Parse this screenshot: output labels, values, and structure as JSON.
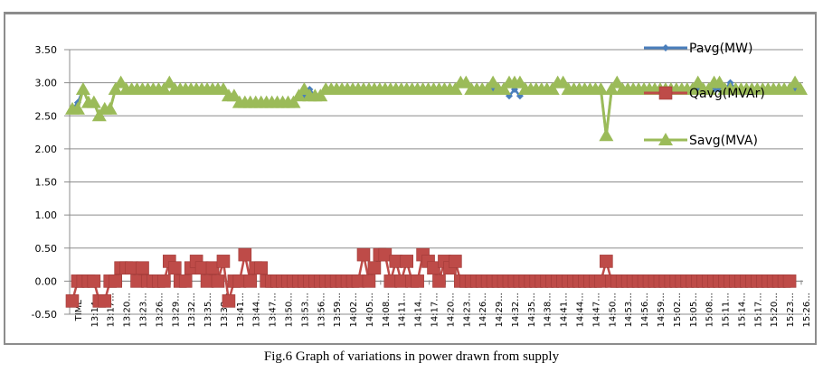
{
  "caption": "Fig.6 Graph of variations in power drawn from supply",
  "chart_data": {
    "type": "line",
    "title": "",
    "xlabel": "",
    "ylabel": "",
    "ylim": [
      -0.5,
      3.5
    ],
    "yticks": [
      "-0.50",
      "0.00",
      "0.50",
      "1.00",
      "1.50",
      "2.00",
      "2.50",
      "3.00",
      "3.50"
    ],
    "ytick_values": [
      -0.5,
      0,
      0.5,
      1.0,
      1.5,
      2.0,
      2.5,
      3.0,
      3.5
    ],
    "grid": true,
    "legend_position": "right",
    "xtick_labels": [
      "TIME",
      "13:14...",
      "13:17...",
      "13:20...",
      "13:23...",
      "13:26...",
      "13:29...",
      "13:32...",
      "13:35...",
      "13:38...",
      "13:41...",
      "13:44...",
      "13:47...",
      "13:50...",
      "13:53...",
      "13:56...",
      "13:59...",
      "14:02...",
      "14:05...",
      "14:08...",
      "14:11...",
      "14:14...",
      "14:17...",
      "14:20...",
      "14:23...",
      "14:26...",
      "14:29...",
      "14:32...",
      "14:35...",
      "14:38...",
      "14:41...",
      "14:44...",
      "14:47...",
      "14:50...",
      "14:53...",
      "14:56...",
      "14:59...",
      "15:02...",
      "15:05...",
      "15:08...",
      "15:11...",
      "15:14...",
      "15:17...",
      "15:20...",
      "15:23...",
      "15:26..."
    ],
    "points_per_tick": 3,
    "series": [
      {
        "name": "Pavg(MW)",
        "color": "#4a7ebb",
        "marker": "diamond",
        "values": [
          2.6,
          2.7,
          2.9,
          2.7,
          2.7,
          2.5,
          2.6,
          2.6,
          2.9,
          3.0,
          2.9,
          2.9,
          2.9,
          2.9,
          2.9,
          2.9,
          2.9,
          2.9,
          3.0,
          2.9,
          2.9,
          2.9,
          2.9,
          2.9,
          2.9,
          2.9,
          2.9,
          2.9,
          2.9,
          2.8,
          2.8,
          2.7,
          2.7,
          2.7,
          2.7,
          2.7,
          2.7,
          2.7,
          2.7,
          2.7,
          2.7,
          2.7,
          2.8,
          2.8,
          2.9,
          2.8,
          2.8,
          2.9,
          2.9,
          2.9,
          2.9,
          2.9,
          2.9,
          2.9,
          2.9,
          2.9,
          2.9,
          2.9,
          2.9,
          2.9,
          2.9,
          2.9,
          2.9,
          2.9,
          2.9,
          2.9,
          2.9,
          2.9,
          2.9,
          2.9,
          2.9,
          2.9,
          3.0,
          3.0,
          2.9,
          2.9,
          2.9,
          2.9,
          2.9,
          2.9,
          2.9,
          2.8,
          2.9,
          2.8,
          2.9,
          2.9,
          2.9,
          2.9,
          2.9,
          2.9,
          3.0,
          3.0,
          2.9,
          2.9,
          2.9,
          2.9,
          2.9,
          2.9,
          2.9,
          2.2,
          2.9,
          3.0,
          2.9,
          2.9,
          2.9,
          2.9,
          2.9,
          2.9,
          2.9,
          2.9,
          2.9,
          2.9,
          2.9,
          2.9,
          2.9,
          2.9,
          2.9,
          2.9,
          2.9,
          2.9,
          2.9,
          2.9,
          3.0,
          2.9,
          2.9,
          2.9,
          2.9,
          2.9,
          2.9,
          2.9,
          2.9,
          2.9,
          2.9,
          2.9,
          2.9,
          2.9
        ]
      },
      {
        "name": "Qavg(MVAr)",
        "color": "#be4b48",
        "marker": "square",
        "values": [
          -0.3,
          0.0,
          0.0,
          0.0,
          0.0,
          -0.3,
          -0.3,
          0.0,
          0.0,
          0.2,
          0.2,
          0.2,
          0.0,
          0.2,
          0.0,
          0.0,
          0.0,
          0.0,
          0.3,
          0.2,
          0.0,
          0.0,
          0.2,
          0.3,
          0.2,
          0.0,
          0.2,
          0.0,
          0.3,
          -0.3,
          0.0,
          0.0,
          0.4,
          0.0,
          0.2,
          0.2,
          0.0,
          0.0,
          0.0,
          0.0,
          0.0,
          0.0,
          0.0,
          0.0,
          0.0,
          0.0,
          0.0,
          0.0,
          0.0,
          0.0,
          0.0,
          0.0,
          0.0,
          0.0,
          0.4,
          0.0,
          0.2,
          0.4,
          0.4,
          0.0,
          0.3,
          0.0,
          0.3,
          0.0,
          0.0,
          0.4,
          0.3,
          0.2,
          0.0,
          0.3,
          0.2,
          0.3,
          0.0,
          0.0,
          0.0,
          0.0,
          0.0,
          0.0,
          0.0,
          0.0,
          0.0,
          0.0,
          0.0,
          0.0,
          0.0,
          0.0,
          0.0,
          0.0,
          0.0,
          0.0,
          0.0,
          0.0,
          0.0,
          0.0,
          0.0,
          0.0,
          0.0,
          0.0,
          0.0,
          0.3,
          0.0,
          0.0,
          0.0,
          0.0,
          0.0,
          0.0,
          0.0,
          0.0,
          0.0,
          0.0,
          0.0,
          0.0,
          0.0,
          0.0,
          0.0,
          0.0,
          0.0,
          0.0,
          0.0,
          0.0,
          0.0,
          0.0,
          0.0,
          0.0,
          0.0,
          0.0,
          0.0,
          0.0,
          0.0,
          0.0,
          0.0,
          0.0,
          0.0,
          0.0
        ]
      },
      {
        "name": "Savg(MVA)",
        "color": "#9bbb59",
        "marker": "triangle",
        "values": [
          2.6,
          2.6,
          2.9,
          2.7,
          2.7,
          2.5,
          2.6,
          2.6,
          2.9,
          3.0,
          2.9,
          2.9,
          2.9,
          2.9,
          2.9,
          2.9,
          2.9,
          2.9,
          3.0,
          2.9,
          2.9,
          2.9,
          2.9,
          2.9,
          2.9,
          2.9,
          2.9,
          2.9,
          2.9,
          2.8,
          2.8,
          2.7,
          2.7,
          2.7,
          2.7,
          2.7,
          2.7,
          2.7,
          2.7,
          2.7,
          2.7,
          2.7,
          2.8,
          2.9,
          2.8,
          2.8,
          2.8,
          2.9,
          2.9,
          2.9,
          2.9,
          2.9,
          2.9,
          2.9,
          2.9,
          2.9,
          2.9,
          2.9,
          2.9,
          2.9,
          2.9,
          2.9,
          2.9,
          2.9,
          2.9,
          2.9,
          2.9,
          2.9,
          2.9,
          2.9,
          2.9,
          2.9,
          3.0,
          3.0,
          2.9,
          2.9,
          2.9,
          2.9,
          3.0,
          2.9,
          2.9,
          3.0,
          3.0,
          3.0,
          2.9,
          2.9,
          2.9,
          2.9,
          2.9,
          2.9,
          3.0,
          3.0,
          2.9,
          2.9,
          2.9,
          2.9,
          2.9,
          2.9,
          2.9,
          2.2,
          2.9,
          3.0,
          2.9,
          2.9,
          2.9,
          2.9,
          2.9,
          2.9,
          2.9,
          2.9,
          2.9,
          2.9,
          2.9,
          2.9,
          2.9,
          2.9,
          3.0,
          2.9,
          2.9,
          3.0,
          3.0,
          2.9,
          2.9,
          2.9,
          2.9,
          2.9,
          2.9,
          2.9,
          2.9,
          2.9,
          2.9,
          2.9,
          2.9,
          2.9,
          3.0,
          2.9
        ]
      }
    ]
  }
}
